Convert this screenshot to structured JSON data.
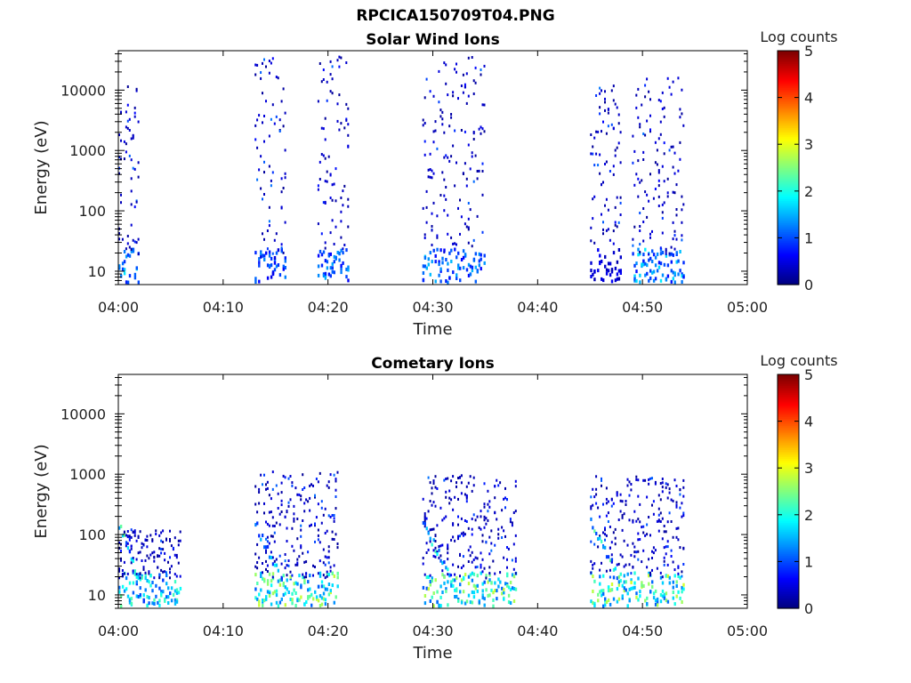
{
  "figure": {
    "title": "RPCICA150709T04.PNG"
  },
  "colors": {
    "colormap": "jet",
    "axis": "#000000",
    "background": "#ffffff"
  },
  "chart_data": [
    {
      "type": "heatmap",
      "title": "Solar Wind Ions",
      "xlabel": "Time",
      "ylabel": "Energy (eV)",
      "x_ticks": [
        "04:00",
        "04:10",
        "04:20",
        "04:30",
        "04:40",
        "04:50",
        "05:00"
      ],
      "xlim": [
        "04:00",
        "05:00"
      ],
      "y_scale": "log",
      "y_ticks": [
        10,
        100,
        1000,
        10000
      ],
      "ylim": [
        6,
        45000
      ],
      "colorbar": {
        "label": "Log counts",
        "ticks": [
          0,
          1,
          2,
          3,
          4,
          5
        ],
        "range": [
          0,
          5
        ],
        "colormap": "jet"
      },
      "bursts": [
        {
          "start": "04:00",
          "end": "04:02",
          "low_energy_max_log_counts": 1.8,
          "upper_energy_eV": 12000
        },
        {
          "start": "04:13",
          "end": "04:16",
          "low_energy_max_log_counts": 1.3,
          "upper_energy_eV": 35000
        },
        {
          "start": "04:19",
          "end": "04:22",
          "low_energy_max_log_counts": 1.5,
          "upper_energy_eV": 38000
        },
        {
          "start": "04:29",
          "end": "04:35",
          "low_energy_max_log_counts": 1.6,
          "upper_energy_eV": 35000
        },
        {
          "start": "04:45",
          "end": "04:48",
          "low_energy_max_log_counts": 0.6,
          "upper_energy_eV": 12000
        },
        {
          "start": "04:49",
          "end": "04:54",
          "low_energy_max_log_counts": 1.8,
          "upper_energy_eV": 18000
        }
      ]
    },
    {
      "type": "heatmap",
      "title": "Cometary Ions",
      "xlabel": "Time",
      "ylabel": "Energy (eV)",
      "x_ticks": [
        "04:00",
        "04:10",
        "04:20",
        "04:30",
        "04:40",
        "04:50",
        "05:00"
      ],
      "xlim": [
        "04:00",
        "05:00"
      ],
      "y_scale": "log",
      "y_ticks": [
        10,
        100,
        1000,
        10000
      ],
      "ylim": [
        6,
        45000
      ],
      "colorbar": {
        "label": "Log counts",
        "ticks": [
          0,
          1,
          2,
          3,
          4,
          5
        ],
        "range": [
          0,
          5
        ],
        "colormap": "jet"
      },
      "bursts": [
        {
          "start": "04:00",
          "end": "04:06",
          "low_energy_max_log_counts": 2.4,
          "upper_energy_eV": 120
        },
        {
          "start": "04:13",
          "end": "04:21",
          "low_energy_max_log_counts": 2.9,
          "upper_energy_eV": 1100
        },
        {
          "start": "04:29",
          "end": "04:38",
          "low_energy_max_log_counts": 2.9,
          "upper_energy_eV": 950
        },
        {
          "start": "04:45",
          "end": "04:54",
          "low_energy_max_log_counts": 3.0,
          "upper_energy_eV": 950
        }
      ]
    }
  ]
}
